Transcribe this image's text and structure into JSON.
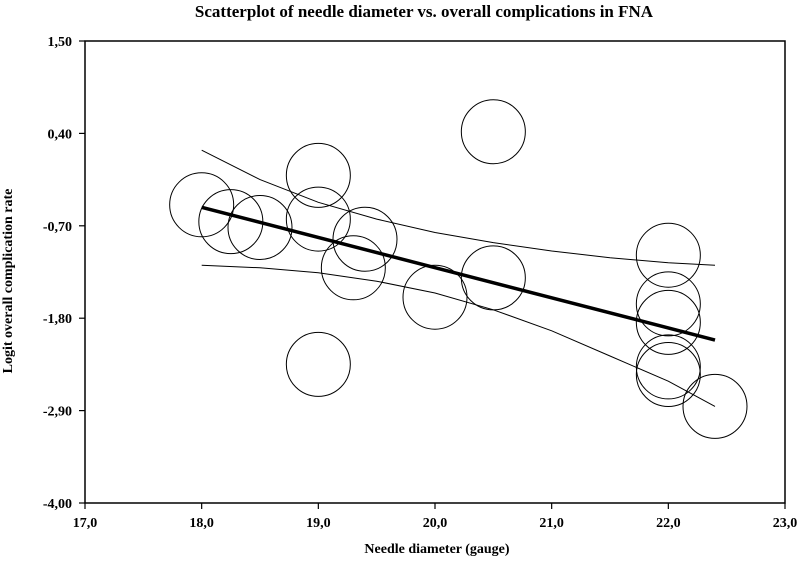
{
  "chart_data": {
    "type": "scatter",
    "title": "Scatterplot of needle diameter vs. overall complications in FNA",
    "xlabel": "Needle diameter (gauge)",
    "ylabel": "Logit overall complication rate",
    "xlim": [
      17.0,
      23.0
    ],
    "ylim": [
      -4.0,
      1.5
    ],
    "xticks": [
      17.0,
      18.0,
      19.0,
      20.0,
      21.0,
      22.0,
      23.0
    ],
    "xtick_labels": [
      "17,0",
      "18,0",
      "19,0",
      "20,0",
      "21,0",
      "22,0",
      "23,0"
    ],
    "yticks": [
      1.5,
      0.4,
      -0.7,
      -1.8,
      -2.9,
      -4.0
    ],
    "ytick_labels": [
      "1,50",
      "0,40",
      "-0,70",
      "-1,80",
      "-2,90",
      "-4,00"
    ],
    "grid": false,
    "legend": "none",
    "points": [
      {
        "x": 18.0,
        "y": -0.45
      },
      {
        "x": 18.25,
        "y": -0.65
      },
      {
        "x": 18.5,
        "y": -0.72
      },
      {
        "x": 19.0,
        "y": -0.1
      },
      {
        "x": 19.0,
        "y": -0.62
      },
      {
        "x": 19.0,
        "y": -2.35
      },
      {
        "x": 19.3,
        "y": -1.2
      },
      {
        "x": 19.4,
        "y": -0.86
      },
      {
        "x": 20.0,
        "y": -1.55
      },
      {
        "x": 20.5,
        "y": 0.42
      },
      {
        "x": 20.5,
        "y": -1.32
      },
      {
        "x": 22.0,
        "y": -1.05
      },
      {
        "x": 22.0,
        "y": -1.63
      },
      {
        "x": 22.0,
        "y": -1.85
      },
      {
        "x": 22.0,
        "y": -2.38
      },
      {
        "x": 22.0,
        "y": -2.47
      },
      {
        "x": 22.4,
        "y": -2.85
      }
    ],
    "regression_line": {
      "x": [
        18.0,
        22.4
      ],
      "y": [
        -0.48,
        -2.06
      ]
    },
    "confidence_upper": {
      "x": [
        18.0,
        18.5,
        19.0,
        19.5,
        20.0,
        20.5,
        21.0,
        21.5,
        22.0,
        22.4
      ],
      "y": [
        0.2,
        -0.15,
        -0.42,
        -0.62,
        -0.78,
        -0.9,
        -1.0,
        -1.08,
        -1.14,
        -1.17
      ]
    },
    "confidence_lower": {
      "x": [
        18.0,
        18.5,
        19.0,
        19.5,
        20.0,
        20.5,
        21.0,
        21.5,
        22.0,
        22.4
      ],
      "y": [
        -1.17,
        -1.2,
        -1.26,
        -1.36,
        -1.5,
        -1.7,
        -1.95,
        -2.25,
        -2.55,
        -2.85
      ]
    }
  }
}
